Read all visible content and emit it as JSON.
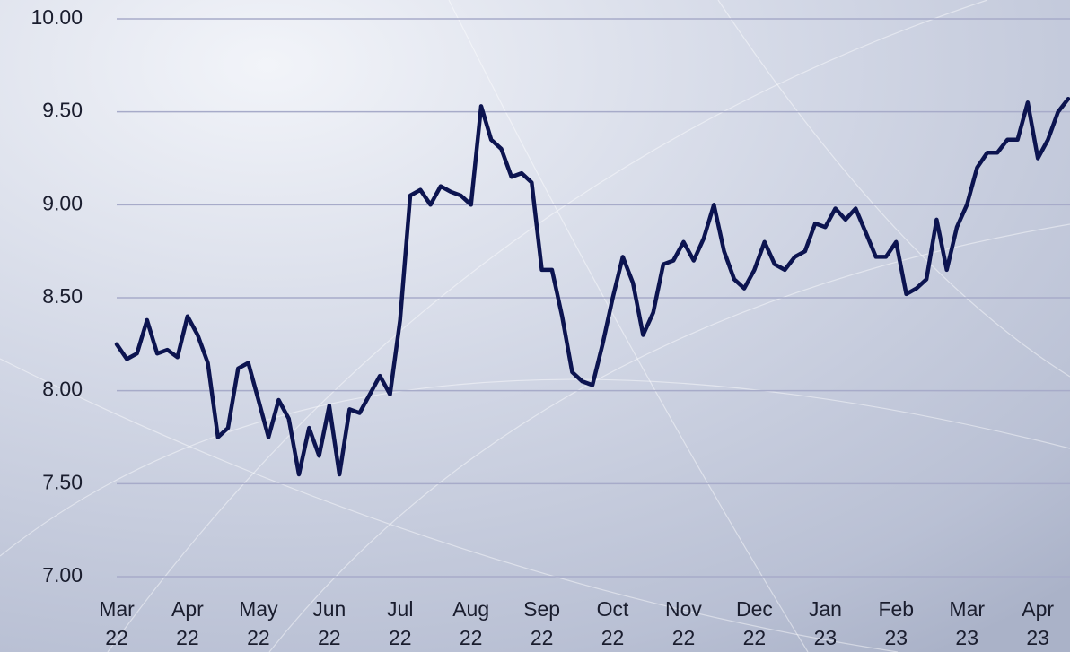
{
  "chart_data": {
    "type": "line",
    "categories": [
      "Mar 22",
      null,
      null,
      null,
      null,
      null,
      null,
      "Apr 22",
      null,
      null,
      null,
      null,
      null,
      null,
      "May 22",
      null,
      null,
      null,
      null,
      null,
      null,
      "Jun 22",
      null,
      null,
      null,
      null,
      null,
      null,
      "Jul 22",
      null,
      null,
      null,
      null,
      null,
      null,
      "Aug 22",
      null,
      null,
      null,
      null,
      null,
      null,
      "Sep 22",
      null,
      null,
      null,
      null,
      null,
      null,
      "Oct 22",
      null,
      null,
      null,
      null,
      null,
      null,
      "Nov 22",
      null,
      null,
      null,
      null,
      null,
      null,
      "Dec 22",
      null,
      null,
      null,
      null,
      null,
      null,
      "Jan 23",
      null,
      null,
      null,
      null,
      null,
      null,
      "Feb 23",
      null,
      null,
      null,
      null,
      null,
      null,
      "Mar 23",
      null,
      null,
      null,
      null,
      null,
      null,
      "Apr 23",
      null,
      null,
      null
    ],
    "values": [
      8.25,
      8.17,
      8.2,
      8.38,
      8.2,
      8.22,
      8.18,
      8.4,
      8.3,
      8.15,
      7.75,
      7.8,
      8.12,
      8.15,
      7.95,
      7.75,
      7.95,
      7.85,
      7.55,
      7.8,
      7.65,
      7.92,
      7.55,
      7.9,
      7.88,
      7.98,
      8.08,
      7.98,
      8.38,
      9.05,
      9.08,
      9.0,
      9.1,
      9.07,
      9.05,
      9.0,
      9.53,
      9.35,
      9.3,
      9.15,
      9.17,
      9.12,
      8.65,
      8.65,
      8.4,
      8.1,
      8.05,
      8.03,
      8.25,
      8.5,
      8.72,
      8.58,
      8.3,
      8.42,
      8.68,
      8.7,
      8.8,
      8.7,
      8.82,
      9.0,
      8.75,
      8.6,
      8.55,
      8.65,
      8.8,
      8.68,
      8.65,
      8.72,
      8.75,
      8.9,
      8.88,
      8.98,
      8.92,
      8.98,
      8.85,
      8.72,
      8.72,
      8.8,
      8.52,
      8.55,
      8.6,
      8.92,
      8.65,
      8.88,
      9.0,
      9.2,
      9.28,
      9.28,
      9.35,
      9.35,
      9.55,
      9.25,
      9.35,
      9.5,
      9.57
    ],
    "color": "#0c1450",
    "ylim": [
      7,
      10
    ],
    "yticks": [
      {
        "value": 7,
        "label": "7.00"
      },
      {
        "value": 7.5,
        "label": "7.50"
      },
      {
        "value": 8,
        "label": "8.00"
      },
      {
        "value": 8.5,
        "label": "8.50"
      },
      {
        "value": 9,
        "label": "9.00"
      },
      {
        "value": 9.5,
        "label": "9.50"
      },
      {
        "value": 10,
        "label": "10.00"
      }
    ],
    "grid": true
  }
}
